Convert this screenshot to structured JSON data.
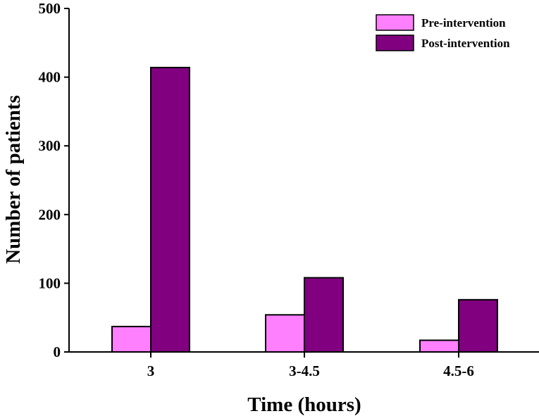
{
  "chart_data": {
    "type": "bar",
    "title": "",
    "xlabel": "Time (hours)",
    "ylabel": "Number of patients",
    "categories": [
      "3",
      "3-4.5",
      "4.5-6"
    ],
    "series": [
      {
        "name": "Pre-intervention",
        "values": [
          37,
          54,
          17
        ],
        "color": "#ff80ff"
      },
      {
        "name": "Post-intervention",
        "values": [
          414,
          108,
          76
        ],
        "color": "#800080"
      }
    ],
    "ylim": [
      0,
      500
    ],
    "yticks": [
      0,
      100,
      200,
      300,
      400,
      500
    ],
    "grid": false,
    "legend_position": "top-right"
  }
}
